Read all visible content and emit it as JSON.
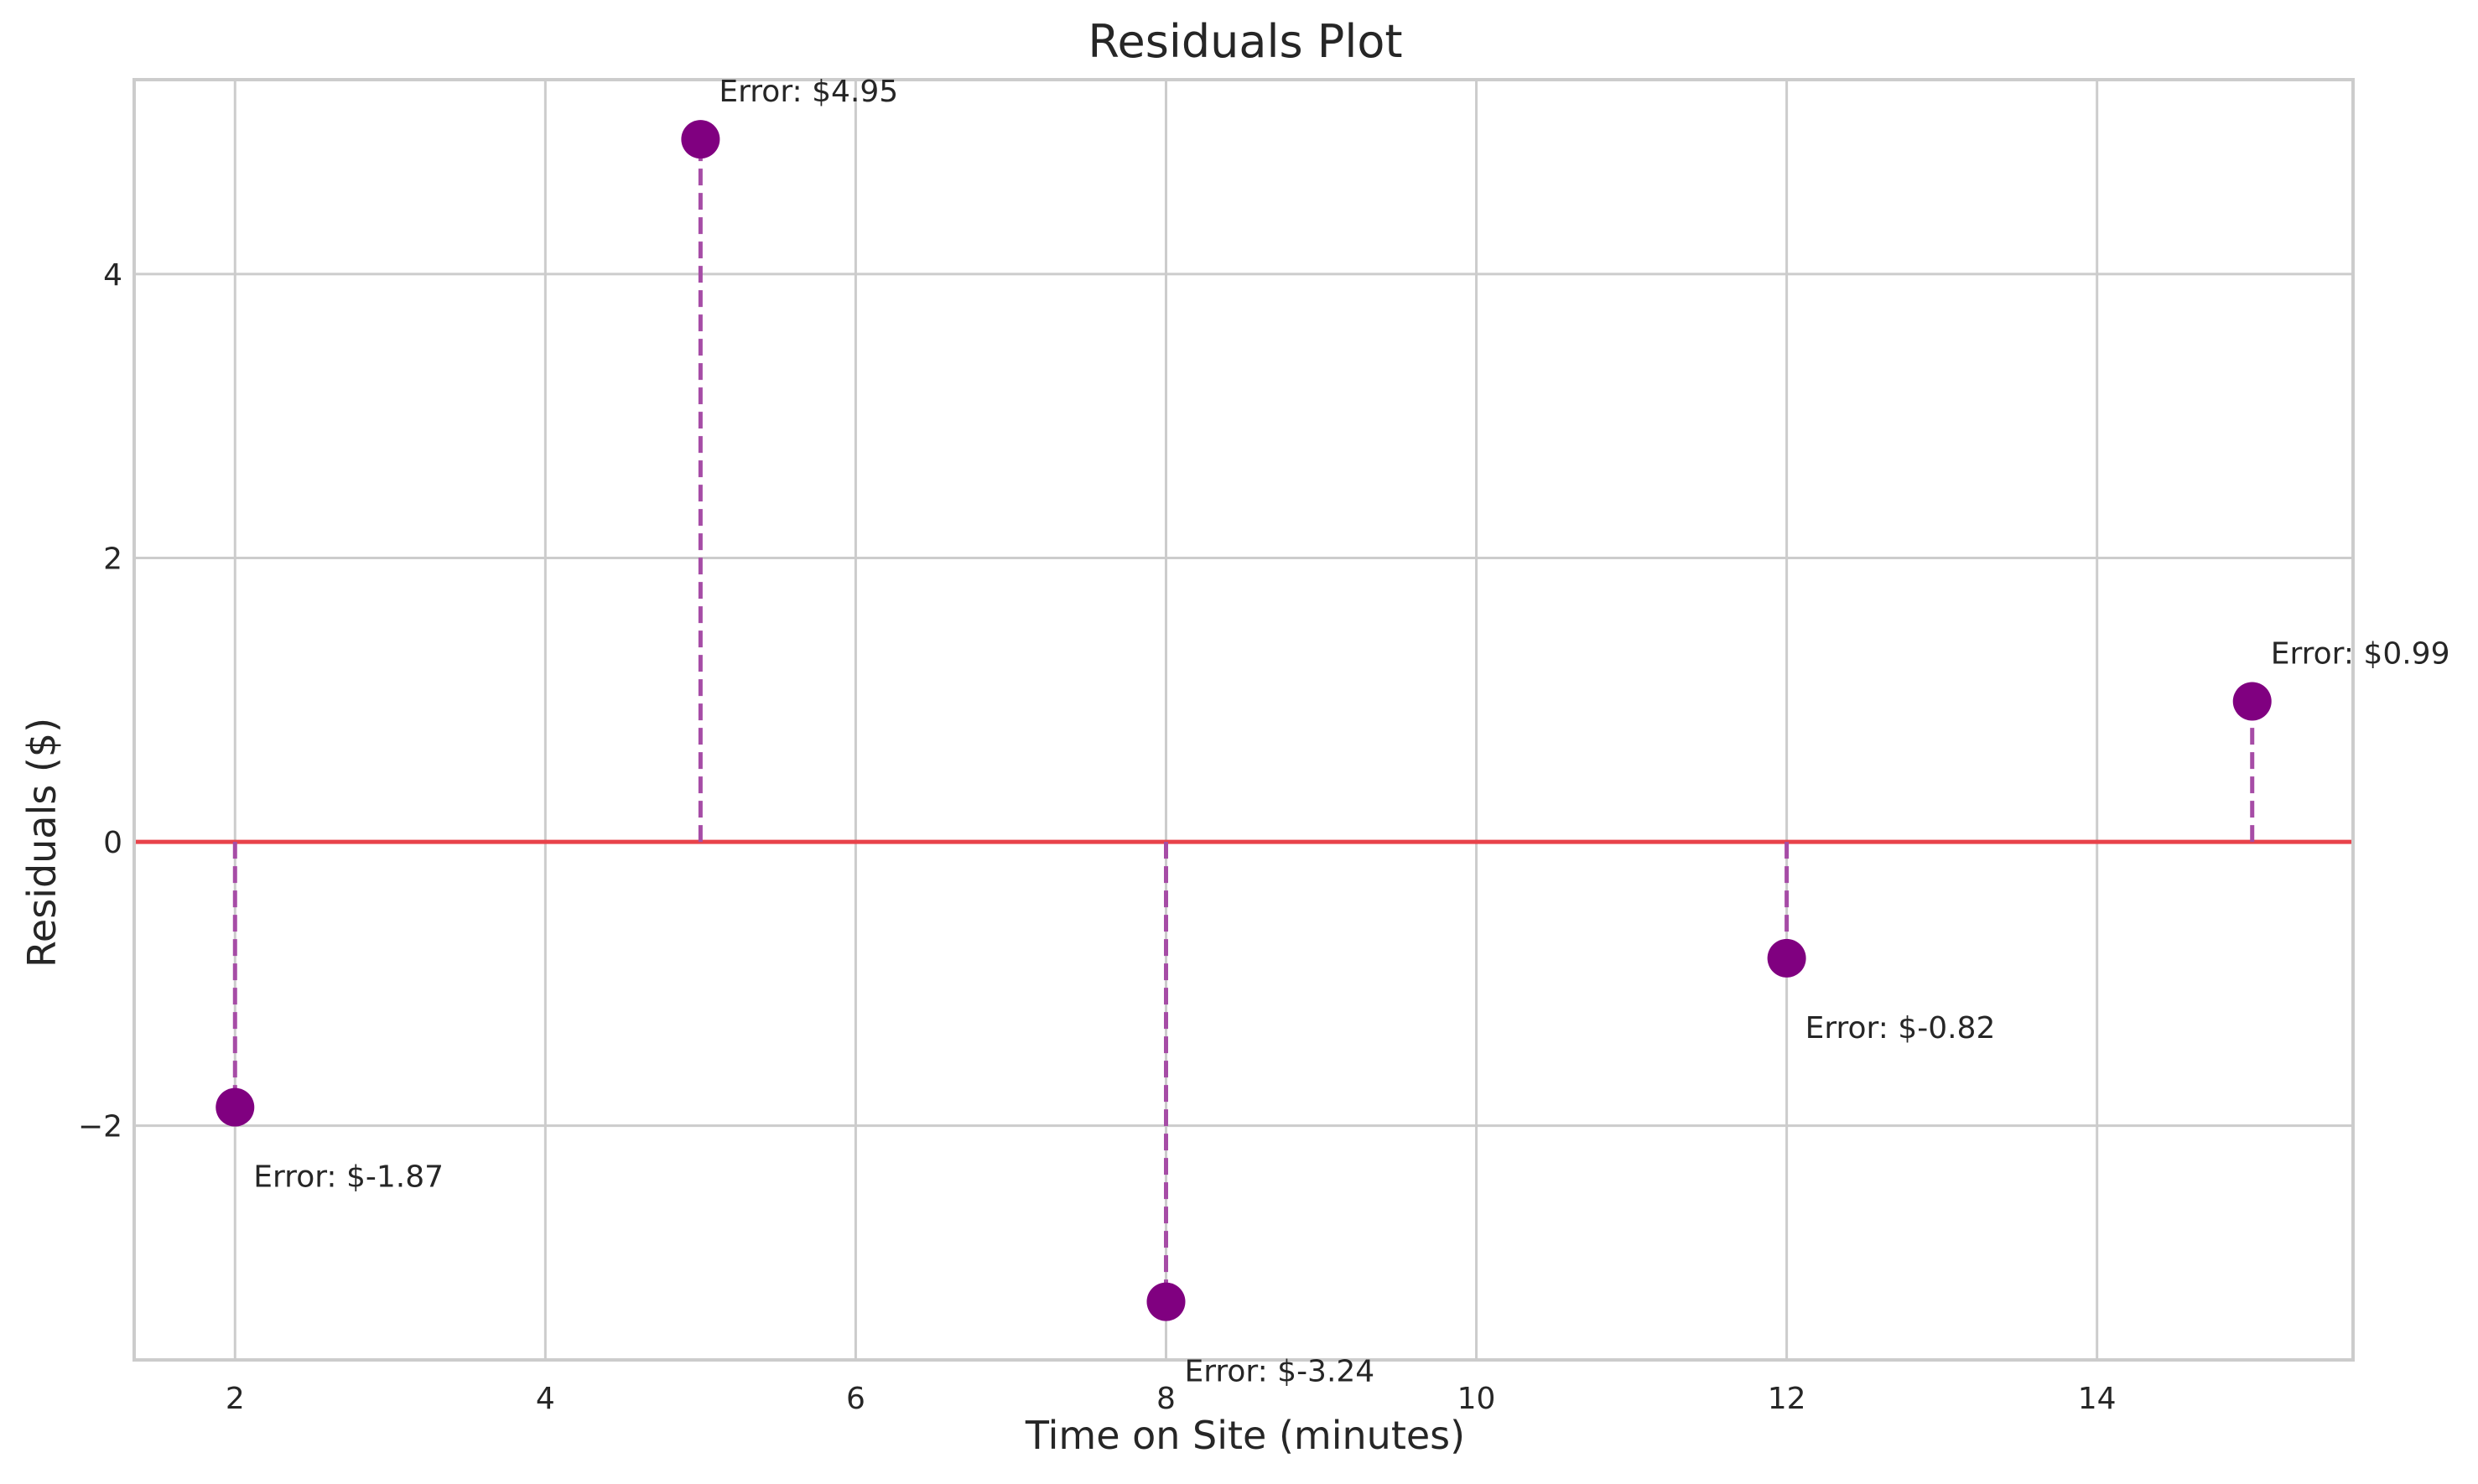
{
  "chart_data": {
    "type": "scatter",
    "title": "Residuals Plot",
    "xlabel": "Time on Site (minutes)",
    "ylabel": "Residuals ($)",
    "xlim": [
      1.35,
      15.65
    ],
    "ylim": [
      -3.65,
      5.37
    ],
    "xticks": [
      2,
      4,
      6,
      8,
      10,
      12,
      14
    ],
    "yticks": [
      -2,
      0,
      2,
      4
    ],
    "xtick_labels": [
      "2",
      "4",
      "6",
      "8",
      "10",
      "12",
      "14"
    ],
    "ytick_labels": [
      "−2",
      "0",
      "2",
      "4"
    ],
    "grid": true,
    "baseline": 0,
    "series": [
      {
        "x": [
          2,
          5,
          8,
          12,
          15
        ],
        "y": [
          -1.87,
          4.95,
          -3.24,
          -0.82,
          0.99
        ]
      }
    ],
    "annotations": [
      "Error: $-1.87",
      "Error: $4.95",
      "Error: $-3.24",
      "Error: $-0.82",
      "Error: $0.99"
    ],
    "colors": {
      "points": "#800080",
      "stems": "#a64ca6",
      "baseline": "#e8424a",
      "grid": "#cccccc",
      "frame": "#cccccc"
    }
  }
}
